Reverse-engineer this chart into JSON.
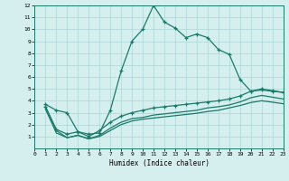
{
  "xlabel": "Humidex (Indice chaleur)",
  "bg_color": "#d5efef",
  "line_color": "#1a7a6a",
  "grid_color": "#aed4d4",
  "line1_x": [
    1,
    2,
    3,
    4,
    5,
    6,
    7,
    8,
    9,
    10,
    11,
    12,
    13,
    14,
    15,
    16,
    17,
    18,
    19,
    20,
    21,
    22,
    23
  ],
  "line1_y": [
    3.7,
    3.2,
    3.0,
    1.4,
    1.2,
    1.3,
    3.2,
    6.5,
    9.0,
    10.0,
    12.0,
    10.6,
    10.1,
    9.3,
    9.6,
    9.3,
    8.3,
    7.9,
    5.8,
    4.8,
    4.9,
    4.8,
    4.7
  ],
  "line2_x": [
    1,
    2,
    3,
    4,
    5,
    6,
    7,
    8,
    9,
    10,
    11,
    12,
    13,
    14,
    15,
    16,
    17,
    18,
    19,
    20,
    21,
    22,
    23
  ],
  "line2_y": [
    3.5,
    1.6,
    1.2,
    1.4,
    1.0,
    1.5,
    2.2,
    2.7,
    3.0,
    3.2,
    3.4,
    3.5,
    3.6,
    3.7,
    3.8,
    3.9,
    4.0,
    4.15,
    4.4,
    4.8,
    5.0,
    4.85,
    4.7
  ],
  "line3_x": [
    1,
    2,
    3,
    4,
    5,
    6,
    7,
    8,
    9,
    10,
    11,
    12,
    13,
    14,
    15,
    16,
    17,
    18,
    19,
    20,
    21,
    22,
    23
  ],
  "line3_y": [
    3.3,
    1.3,
    0.9,
    1.1,
    0.8,
    1.1,
    1.7,
    2.2,
    2.5,
    2.6,
    2.8,
    2.9,
    3.0,
    3.1,
    3.2,
    3.4,
    3.5,
    3.65,
    3.9,
    4.25,
    4.45,
    4.3,
    4.15
  ],
  "line4_x": [
    1,
    2,
    3,
    4,
    5,
    6,
    7,
    8,
    9,
    10,
    11,
    12,
    13,
    14,
    15,
    16,
    17,
    18,
    19,
    20,
    21,
    22,
    23
  ],
  "line4_y": [
    3.5,
    1.5,
    0.9,
    1.1,
    0.8,
    1.0,
    1.5,
    2.0,
    2.3,
    2.45,
    2.55,
    2.65,
    2.75,
    2.85,
    2.95,
    3.1,
    3.2,
    3.4,
    3.6,
    3.85,
    4.0,
    3.88,
    3.75
  ],
  "xlim": [
    0,
    23
  ],
  "ylim": [
    0,
    12
  ],
  "xticks": [
    0,
    1,
    2,
    3,
    4,
    5,
    6,
    7,
    8,
    9,
    10,
    11,
    12,
    13,
    14,
    15,
    16,
    17,
    18,
    19,
    20,
    21,
    22,
    23
  ],
  "yticks": [
    1,
    2,
    3,
    4,
    5,
    6,
    7,
    8,
    9,
    10,
    11,
    12
  ]
}
